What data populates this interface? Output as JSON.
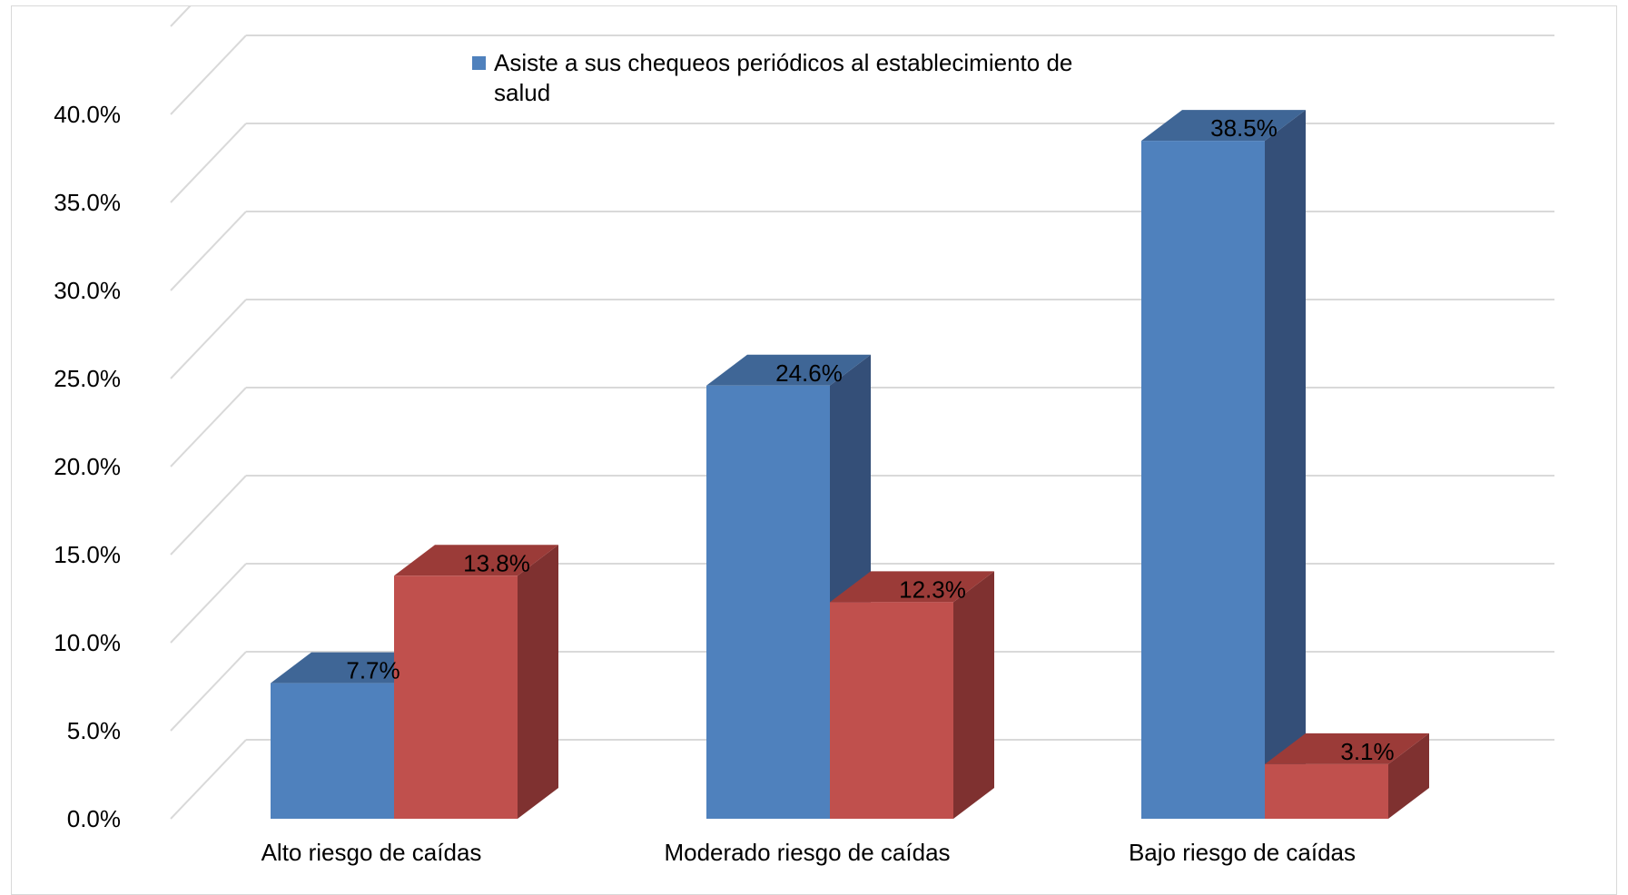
{
  "chart_data": {
    "type": "bar",
    "bar_style": "3d-clustered",
    "categories": [
      "Alto riesgo de caídas",
      "Moderado riesgo de caídas",
      "Bajo riesgo de caídas"
    ],
    "series": [
      {
        "name": "Asiste a sus chequeos periódicos al establecimiento de salud",
        "legend_lines": [
          "Asiste a sus chequeos periódicos al establecimiento de",
          "salud"
        ],
        "values": [
          7.7,
          24.6,
          38.5
        ],
        "labels": [
          "7.7%",
          "24.6%",
          "38.5%"
        ],
        "color": "#4f81bd",
        "top_color": "#3f6696",
        "side_color": "#344f78"
      },
      {
        "values": [
          13.8,
          12.3,
          3.1
        ],
        "labels": [
          "13.8%",
          "12.3%",
          "3.1%"
        ],
        "color": "#c0504d",
        "top_color": "#9b3b38",
        "side_color": "#7f3130"
      }
    ],
    "ylim": [
      0,
      40
    ],
    "yticks": [
      "0.0%",
      "5.0%",
      "10.0%",
      "15.0%",
      "20.0%",
      "25.0%",
      "30.0%",
      "35.0%",
      "40.0%"
    ],
    "ytick_values": [
      0,
      5,
      10,
      15,
      20,
      25,
      30,
      35,
      40
    ],
    "grid": true,
    "legend_position": "top-center",
    "grid_color": "#d9d9d9"
  }
}
